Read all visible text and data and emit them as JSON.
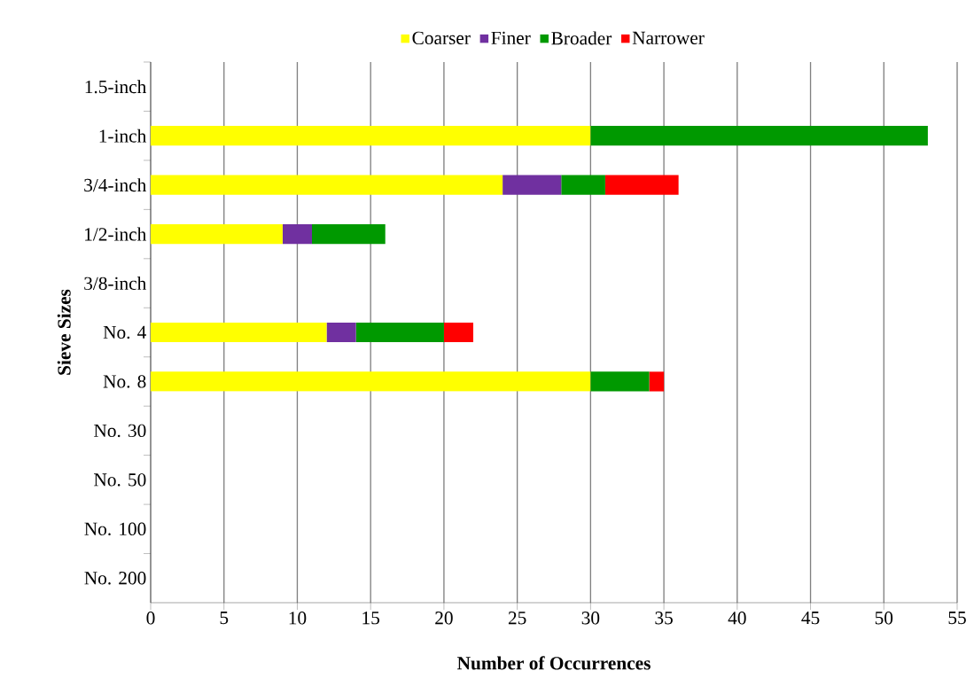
{
  "chart_data": {
    "type": "bar",
    "orientation": "horizontal",
    "stacked": true,
    "xlabel": "Number of Occurrences",
    "ylabel": "Sieve Sizes",
    "categories": [
      "1.5-inch",
      "1-inch",
      "3/4-inch",
      "1/2-inch",
      "3/8-inch",
      "No. 4",
      "No. 8",
      "No. 30",
      "No. 50",
      "No. 100",
      "No. 200"
    ],
    "series": [
      {
        "name": "Coarser",
        "color": "#ffff00",
        "values": [
          0,
          30,
          24,
          9,
          0,
          12,
          30,
          0,
          0,
          0,
          0
        ]
      },
      {
        "name": "Finer",
        "color": "#7030a0",
        "values": [
          0,
          0,
          4,
          2,
          0,
          2,
          0,
          0,
          0,
          0,
          0
        ]
      },
      {
        "name": "Broader",
        "color": "#009900",
        "values": [
          0,
          23,
          3,
          5,
          0,
          6,
          4,
          0,
          0,
          0,
          0
        ]
      },
      {
        "name": "Narrower",
        "color": "#ff0000",
        "values": [
          0,
          0,
          5,
          0,
          0,
          2,
          1,
          0,
          0,
          0,
          0
        ]
      }
    ],
    "xlim": [
      0,
      55
    ],
    "xticks": [
      0,
      5,
      10,
      15,
      20,
      25,
      30,
      35,
      40,
      45,
      50,
      55
    ],
    "grid": "x",
    "legend": "top"
  }
}
